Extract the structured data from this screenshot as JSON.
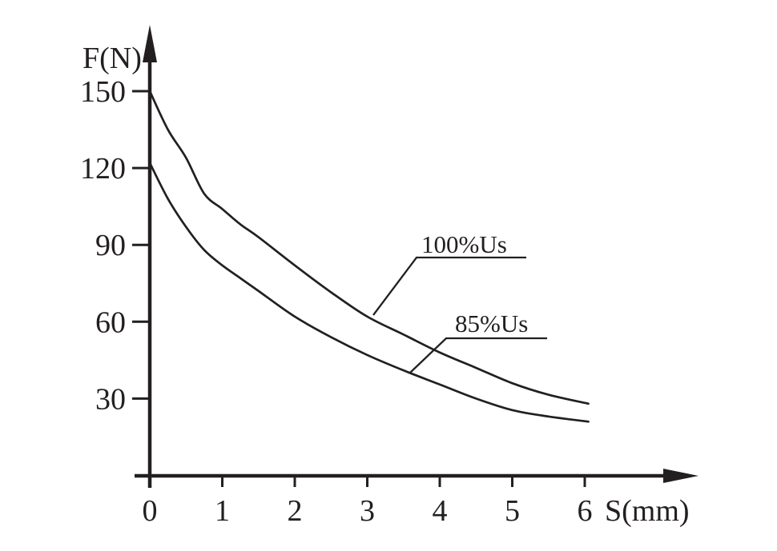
{
  "page": {
    "background": "#ffffff",
    "ink": "#231f20"
  },
  "chart_data": {
    "type": "line",
    "title": "",
    "xlabel": "S(mm)",
    "ylabel": "F(N)",
    "x_ticks": [
      0,
      1,
      2,
      3,
      4,
      5,
      6
    ],
    "y_ticks": [
      30,
      60,
      90,
      120,
      150
    ],
    "xlim": [
      0,
      6.6
    ],
    "ylim": [
      0,
      165
    ],
    "grid": false,
    "legend_position": "inline-callout-labels",
    "series": [
      {
        "name": "100%Us",
        "points": [
          [
            0,
            150
          ],
          [
            0.25,
            135
          ],
          [
            0.5,
            124
          ],
          [
            0.75,
            110
          ],
          [
            1,
            104
          ],
          [
            1.25,
            98
          ],
          [
            1.5,
            93
          ],
          [
            2,
            82
          ],
          [
            2.5,
            71.5
          ],
          [
            3,
            62
          ],
          [
            3.5,
            55
          ],
          [
            4,
            48
          ],
          [
            4.5,
            42
          ],
          [
            5,
            36
          ],
          [
            5.5,
            31.5
          ],
          [
            6.05,
            28
          ]
        ]
      },
      {
        "name": "85%Us",
        "points": [
          [
            0,
            122
          ],
          [
            0.25,
            108
          ],
          [
            0.5,
            97
          ],
          [
            0.75,
            88
          ],
          [
            1,
            82
          ],
          [
            1.25,
            77
          ],
          [
            1.5,
            72
          ],
          [
            2,
            62
          ],
          [
            2.5,
            54
          ],
          [
            3,
            47
          ],
          [
            3.5,
            41
          ],
          [
            4,
            35.5
          ],
          [
            4.5,
            30
          ],
          [
            5,
            25.5
          ],
          [
            5.5,
            23
          ],
          [
            6.05,
            21
          ]
        ]
      }
    ]
  }
}
